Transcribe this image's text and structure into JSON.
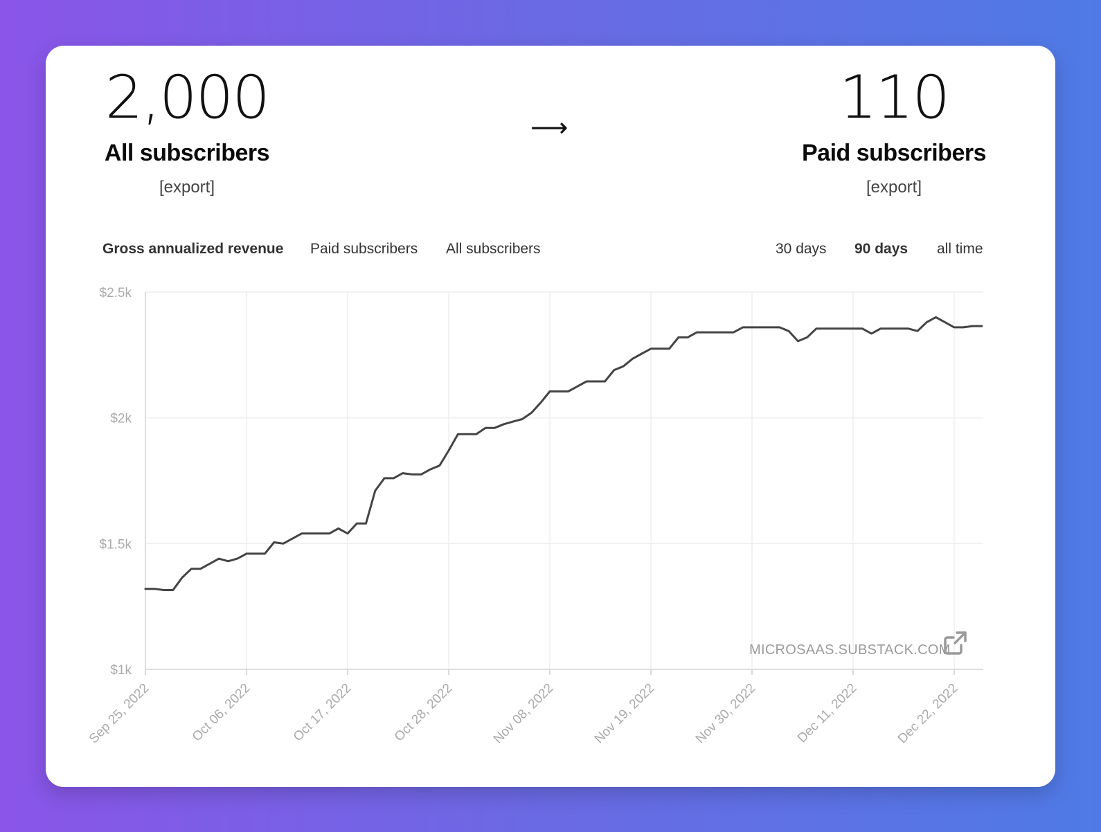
{
  "stats": {
    "all": {
      "value": "2,000",
      "label": "All subscribers",
      "export": "[export]"
    },
    "arrow": "⟶",
    "paid": {
      "value": "110",
      "label": "Paid subscribers",
      "export": "[export]"
    }
  },
  "tabs": [
    {
      "label": "Gross annualized revenue",
      "active": true
    },
    {
      "label": "Paid subscribers",
      "active": false
    },
    {
      "label": "All subscribers",
      "active": false
    }
  ],
  "ranges": [
    {
      "label": "30 days",
      "active": false
    },
    {
      "label": "90 days",
      "active": true
    },
    {
      "label": "all time",
      "active": false
    }
  ],
  "watermark": "MICROSAAS.SUBSTACK.COM",
  "colors": {
    "line": "#444444",
    "grid": "#eeeeee",
    "axis_text": "#aaaaaa"
  },
  "chart_data": {
    "type": "line",
    "ylim": [
      1000,
      2500
    ],
    "y_ticks": [
      1000,
      1500,
      2000,
      2500
    ],
    "y_tick_labels": [
      "$1k",
      "$1.5k",
      "$2k",
      "$2.5k"
    ],
    "x_tick_labels": [
      "Sep 25, 2022",
      "Oct 06, 2022",
      "Oct 17, 2022",
      "Oct 28, 2022",
      "Nov 08, 2022",
      "Nov 19, 2022",
      "Nov 30, 2022",
      "Dec 11, 2022",
      "Dec 22, 2022"
    ],
    "x_tick_days": [
      0,
      11,
      22,
      33,
      44,
      55,
      66,
      77,
      88
    ],
    "grid": true,
    "series": [
      {
        "points": [
          [
            0,
            1320
          ],
          [
            1,
            1320
          ],
          [
            2,
            1315
          ],
          [
            3,
            1315
          ],
          [
            4,
            1365
          ],
          [
            5,
            1400
          ],
          [
            6,
            1400
          ],
          [
            7,
            1420
          ],
          [
            8,
            1440
          ],
          [
            9,
            1430
          ],
          [
            10,
            1440
          ],
          [
            11,
            1460
          ],
          [
            12,
            1460
          ],
          [
            13,
            1460
          ],
          [
            14,
            1505
          ],
          [
            15,
            1500
          ],
          [
            16,
            1520
          ],
          [
            17,
            1540
          ],
          [
            18,
            1540
          ],
          [
            19,
            1540
          ],
          [
            20,
            1540
          ],
          [
            21,
            1560
          ],
          [
            22,
            1540
          ],
          [
            23,
            1580
          ],
          [
            24,
            1580
          ],
          [
            25,
            1710
          ],
          [
            26,
            1760
          ],
          [
            27,
            1760
          ],
          [
            28,
            1780
          ],
          [
            29,
            1775
          ],
          [
            30,
            1775
          ],
          [
            31,
            1795
          ],
          [
            32,
            1810
          ],
          [
            33,
            1870
          ],
          [
            34,
            1935
          ],
          [
            35,
            1935
          ],
          [
            36,
            1935
          ],
          [
            37,
            1960
          ],
          [
            38,
            1960
          ],
          [
            39,
            1975
          ],
          [
            40,
            1985
          ],
          [
            41,
            1995
          ],
          [
            42,
            2020
          ],
          [
            43,
            2060
          ],
          [
            44,
            2105
          ],
          [
            45,
            2105
          ],
          [
            46,
            2105
          ],
          [
            47,
            2125
          ],
          [
            48,
            2145
          ],
          [
            49,
            2145
          ],
          [
            50,
            2145
          ],
          [
            51,
            2190
          ],
          [
            52,
            2205
          ],
          [
            53,
            2235
          ],
          [
            54,
            2255
          ],
          [
            55,
            2275
          ],
          [
            56,
            2275
          ],
          [
            57,
            2275
          ],
          [
            58,
            2320
          ],
          [
            59,
            2320
          ],
          [
            60,
            2340
          ],
          [
            61,
            2340
          ],
          [
            62,
            2340
          ],
          [
            63,
            2340
          ],
          [
            64,
            2340
          ],
          [
            65,
            2360
          ],
          [
            66,
            2360
          ],
          [
            67,
            2360
          ],
          [
            68,
            2360
          ],
          [
            69,
            2360
          ],
          [
            70,
            2345
          ],
          [
            71,
            2305
          ],
          [
            72,
            2320
          ],
          [
            73,
            2355
          ],
          [
            74,
            2355
          ],
          [
            75,
            2355
          ],
          [
            76,
            2355
          ],
          [
            77,
            2355
          ],
          [
            78,
            2355
          ],
          [
            79,
            2335
          ],
          [
            80,
            2355
          ],
          [
            81,
            2355
          ],
          [
            82,
            2355
          ],
          [
            83,
            2355
          ],
          [
            84,
            2345
          ],
          [
            85,
            2380
          ],
          [
            86,
            2400
          ],
          [
            87,
            2380
          ],
          [
            88,
            2360
          ],
          [
            89,
            2360
          ],
          [
            90,
            2365
          ],
          [
            91,
            2365
          ]
        ]
      }
    ]
  }
}
